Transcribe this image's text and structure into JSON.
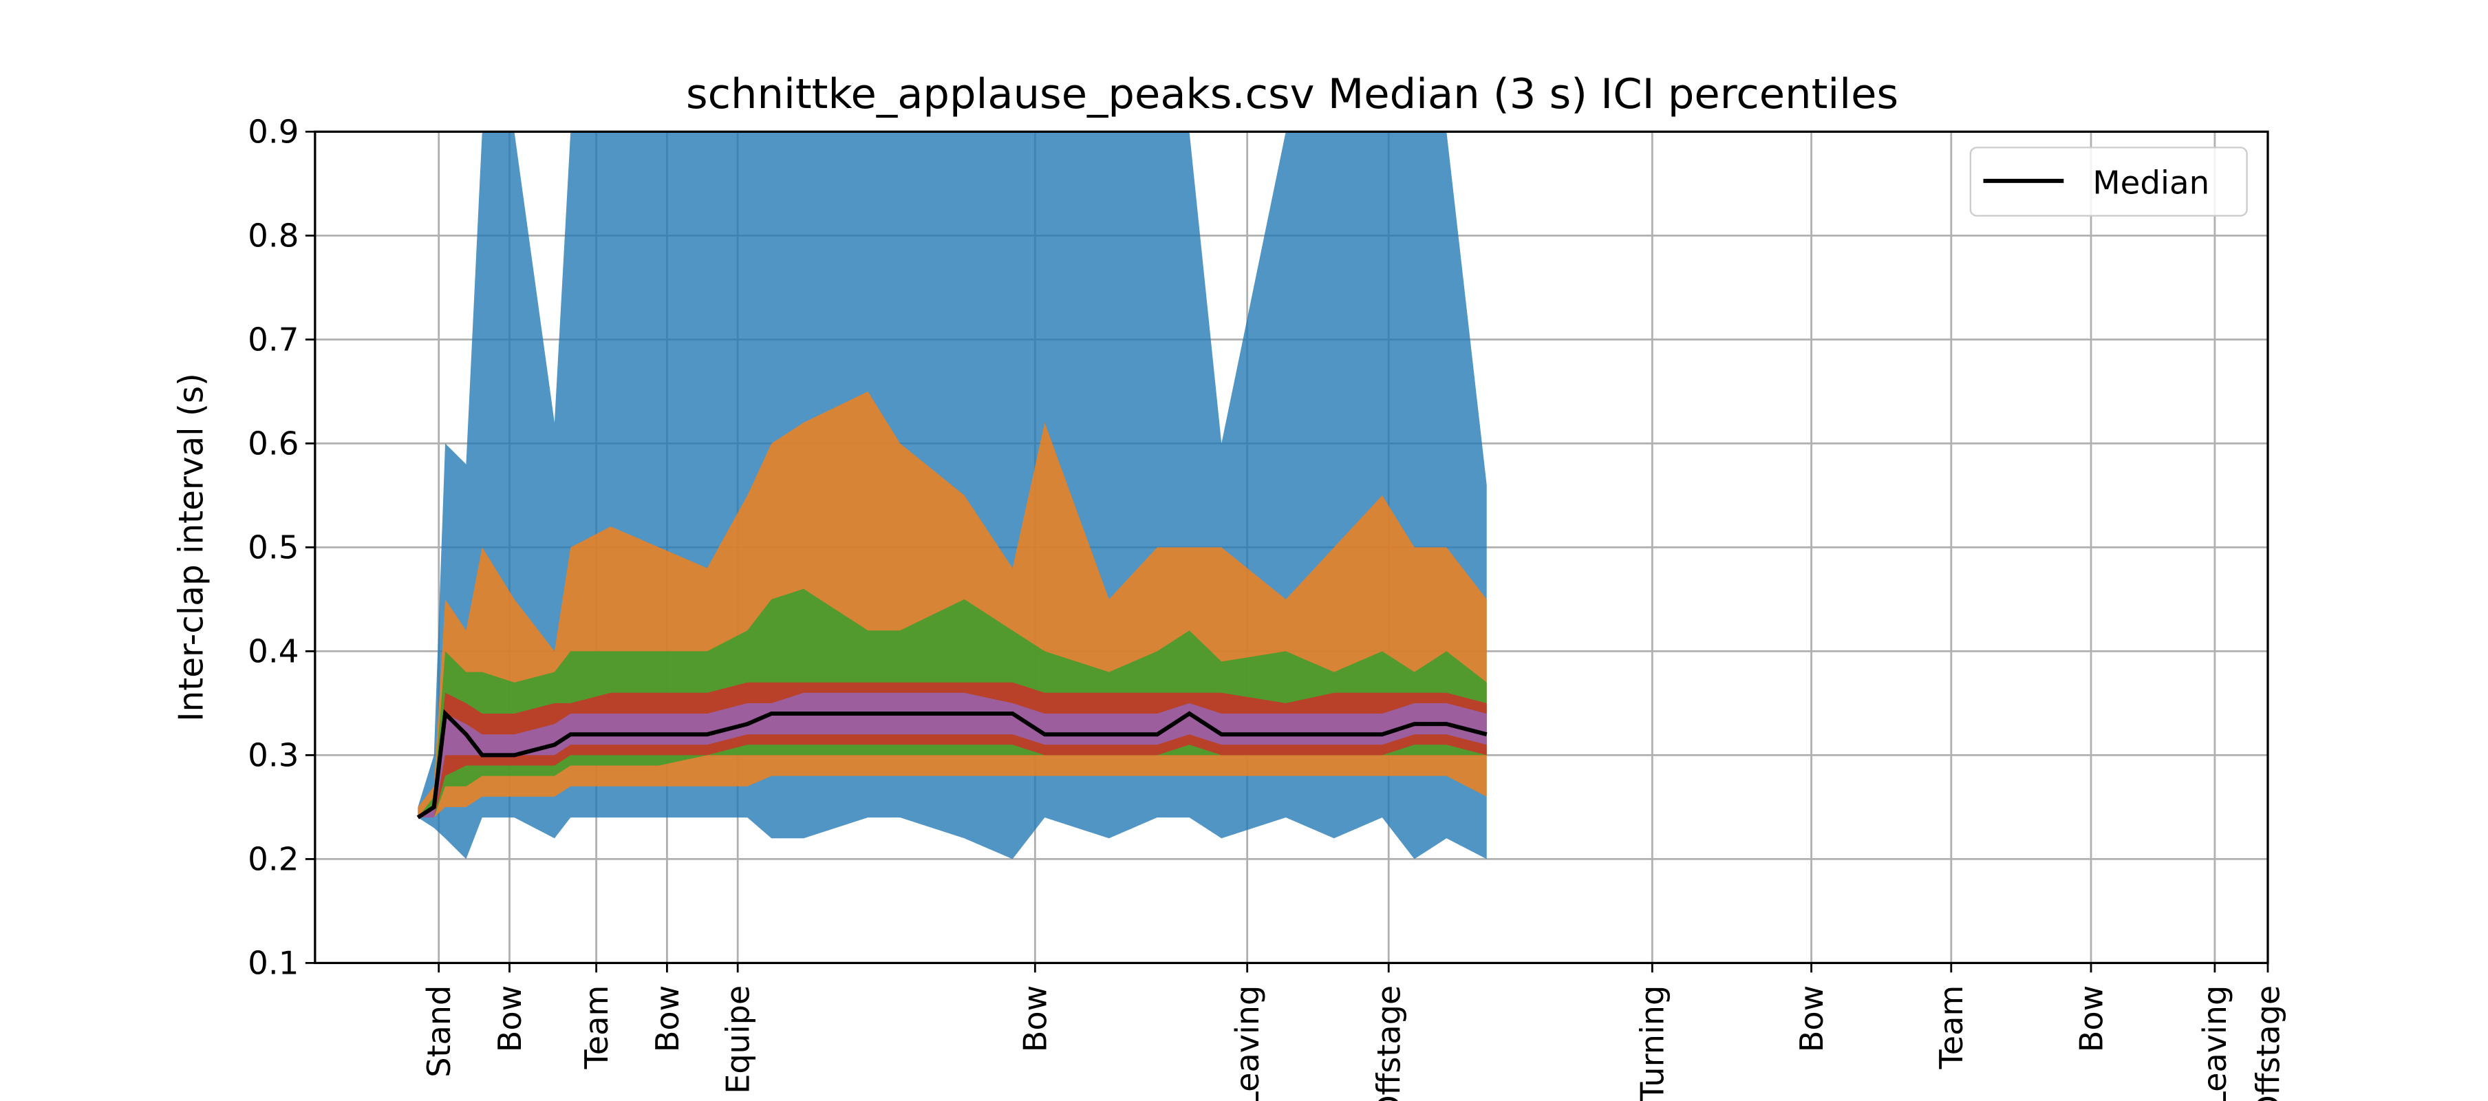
{
  "chart_data": {
    "type": "band",
    "title": "schnittke_applause_peaks.csv Median (3 s) ICI percentiles",
    "y_label": "Inter-clap interval (s)",
    "grid": true,
    "legend_loc": "upper right",
    "xlim": [
      0,
      1215
    ],
    "xticks": [
      {
        "value": 77,
        "label": "Stand"
      },
      {
        "value": 121,
        "label": "Bow"
      },
      {
        "value": 175,
        "label": "Team"
      },
      {
        "value": 219,
        "label": "Bow"
      },
      {
        "value": 263,
        "label": "Equipe"
      },
      {
        "value": 448,
        "label": "Bow"
      },
      {
        "value": 580,
        "label": "Leaving"
      },
      {
        "value": 668,
        "label": "Offstage"
      },
      {
        "value": 832,
        "label": "Turning"
      },
      {
        "value": 931,
        "label": "Bow"
      },
      {
        "value": 1018,
        "label": "Team"
      },
      {
        "value": 1105,
        "label": "Bow"
      },
      {
        "value": 1182,
        "label": "Leaving"
      },
      {
        "value": 1215,
        "label": "Offstage"
      }
    ],
    "ylim": [
      0.1,
      0.9
    ],
    "yticks": [
      0.1,
      0.2,
      0.3,
      0.4,
      0.5,
      0.6,
      0.7,
      0.8,
      0.9
    ],
    "x": [
      64,
      74,
      81,
      94,
      104,
      124,
      149,
      159,
      184,
      214,
      244,
      269,
      284,
      304,
      344,
      364,
      404,
      434,
      454,
      494,
      524,
      544,
      564,
      604,
      634,
      664,
      684,
      704,
      729
    ],
    "bands": [
      {
        "color": "#1f77b4",
        "upper": [
          0.25,
          0.3,
          0.6,
          0.58,
          0.9,
          0.9,
          0.62,
          0.9,
          0.9,
          0.9,
          0.9,
          0.9,
          0.9,
          0.9,
          0.9,
          0.9,
          0.9,
          0.9,
          0.9,
          0.9,
          0.9,
          0.9,
          0.6,
          0.9,
          0.9,
          0.9,
          0.9,
          0.9,
          0.56
        ],
        "lower": [
          0.24,
          0.23,
          0.22,
          0.2,
          0.24,
          0.24,
          0.22,
          0.24,
          0.24,
          0.24,
          0.24,
          0.24,
          0.22,
          0.22,
          0.24,
          0.24,
          0.22,
          0.2,
          0.24,
          0.22,
          0.24,
          0.24,
          0.22,
          0.24,
          0.22,
          0.24,
          0.2,
          0.22,
          0.2
        ]
      },
      {
        "color": "#ff7f0e",
        "upper": [
          0.25,
          0.27,
          0.45,
          0.42,
          0.5,
          0.45,
          0.4,
          0.5,
          0.52,
          0.5,
          0.48,
          0.55,
          0.6,
          0.62,
          0.65,
          0.6,
          0.55,
          0.48,
          0.62,
          0.45,
          0.5,
          0.5,
          0.5,
          0.45,
          0.5,
          0.55,
          0.5,
          0.5,
          0.45
        ],
        "lower": [
          0.24,
          0.24,
          0.25,
          0.25,
          0.26,
          0.26,
          0.26,
          0.27,
          0.27,
          0.27,
          0.27,
          0.27,
          0.28,
          0.28,
          0.28,
          0.28,
          0.28,
          0.28,
          0.28,
          0.28,
          0.28,
          0.28,
          0.28,
          0.28,
          0.28,
          0.28,
          0.28,
          0.28,
          0.26
        ]
      },
      {
        "color": "#2ca02c",
        "upper": [
          0.24,
          0.26,
          0.4,
          0.38,
          0.38,
          0.37,
          0.38,
          0.4,
          0.4,
          0.4,
          0.4,
          0.42,
          0.45,
          0.46,
          0.42,
          0.42,
          0.45,
          0.42,
          0.4,
          0.38,
          0.4,
          0.42,
          0.39,
          0.4,
          0.38,
          0.4,
          0.38,
          0.4,
          0.37
        ],
        "lower": [
          0.24,
          0.24,
          0.27,
          0.27,
          0.28,
          0.28,
          0.28,
          0.29,
          0.29,
          0.29,
          0.3,
          0.3,
          0.3,
          0.3,
          0.3,
          0.3,
          0.3,
          0.3,
          0.3,
          0.3,
          0.3,
          0.3,
          0.3,
          0.3,
          0.3,
          0.3,
          0.3,
          0.3,
          0.3
        ]
      },
      {
        "color": "#d62728",
        "upper": [
          0.24,
          0.25,
          0.36,
          0.35,
          0.34,
          0.34,
          0.35,
          0.35,
          0.36,
          0.36,
          0.36,
          0.37,
          0.37,
          0.37,
          0.37,
          0.37,
          0.37,
          0.37,
          0.36,
          0.36,
          0.36,
          0.36,
          0.36,
          0.35,
          0.36,
          0.36,
          0.36,
          0.36,
          0.35
        ],
        "lower": [
          0.24,
          0.24,
          0.28,
          0.29,
          0.29,
          0.29,
          0.29,
          0.3,
          0.3,
          0.3,
          0.3,
          0.31,
          0.31,
          0.31,
          0.31,
          0.31,
          0.31,
          0.31,
          0.3,
          0.3,
          0.3,
          0.31,
          0.3,
          0.3,
          0.3,
          0.3,
          0.31,
          0.31,
          0.3
        ]
      },
      {
        "color": "#9467bd",
        "upper": [
          0.24,
          0.25,
          0.34,
          0.33,
          0.32,
          0.32,
          0.33,
          0.34,
          0.34,
          0.34,
          0.34,
          0.35,
          0.35,
          0.36,
          0.36,
          0.36,
          0.36,
          0.35,
          0.34,
          0.34,
          0.34,
          0.35,
          0.34,
          0.34,
          0.34,
          0.34,
          0.35,
          0.35,
          0.34
        ],
        "lower": [
          0.24,
          0.24,
          0.3,
          0.3,
          0.3,
          0.3,
          0.3,
          0.31,
          0.31,
          0.31,
          0.31,
          0.32,
          0.32,
          0.32,
          0.32,
          0.32,
          0.32,
          0.32,
          0.31,
          0.31,
          0.31,
          0.32,
          0.31,
          0.31,
          0.31,
          0.31,
          0.32,
          0.32,
          0.31
        ]
      }
    ],
    "series": [
      {
        "name": "Median",
        "color": "#000000",
        "values": [
          0.24,
          0.25,
          0.34,
          0.32,
          0.3,
          0.3,
          0.31,
          0.32,
          0.32,
          0.32,
          0.32,
          0.33,
          0.34,
          0.34,
          0.34,
          0.34,
          0.34,
          0.34,
          0.32,
          0.32,
          0.32,
          0.34,
          0.32,
          0.32,
          0.32,
          0.32,
          0.33,
          0.33,
          0.32
        ]
      }
    ]
  }
}
